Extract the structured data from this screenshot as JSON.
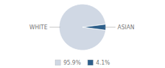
{
  "chart_data": {
    "type": "pie",
    "categories": [
      "WHITE",
      "ASIAN"
    ],
    "values": [
      95.9,
      4.1
    ],
    "value_labels": [
      "95.9%",
      "4.1%"
    ],
    "colors": [
      "#d0d8e4",
      "#2e5f8a"
    ],
    "legend": "bottom"
  }
}
